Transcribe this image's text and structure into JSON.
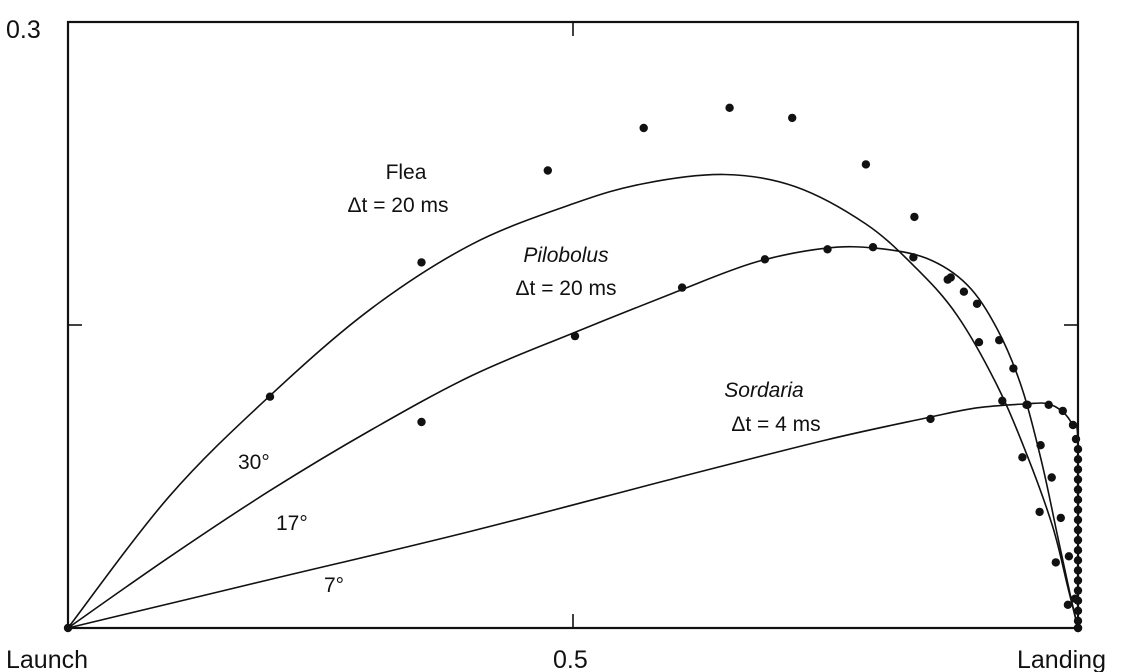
{
  "chart_data": {
    "type": "line",
    "title": "",
    "xlabel": "",
    "ylabel": "",
    "xlim": [
      0,
      1
    ],
    "ylim": [
      0,
      0.3
    ],
    "x_ticks": [
      {
        "value": 0,
        "label": "Launch"
      },
      {
        "value": 0.5,
        "label": "0.5"
      },
      {
        "value": 1,
        "label": "Landing"
      }
    ],
    "y_ticks": [
      {
        "value": 0.3,
        "label": "0.3"
      },
      {
        "value": 0.15,
        "label": ""
      }
    ],
    "grid": false,
    "series": [
      {
        "name": "Flea",
        "annotation": [
          "Flea",
          "Δt = 20 ms"
        ],
        "launch_angle": "30°",
        "curve": [
          [
            0,
            0
          ],
          [
            0.1,
            0.065
          ],
          [
            0.2,
            0.115
          ],
          [
            0.3,
            0.158
          ],
          [
            0.4,
            0.19
          ],
          [
            0.5,
            0.21
          ],
          [
            0.57,
            0.22
          ],
          [
            0.65,
            0.2245
          ],
          [
            0.72,
            0.2185
          ],
          [
            0.79,
            0.2
          ],
          [
            0.84,
            0.178
          ],
          [
            0.88,
            0.155
          ],
          [
            0.92,
            0.12
          ],
          [
            0.95,
            0.085
          ],
          [
            0.975,
            0.05
          ],
          [
            0.99,
            0.02
          ],
          [
            1,
            0
          ]
        ],
        "points": [
          [
            0.2,
            0.1145
          ],
          [
            0.35,
            0.181
          ],
          [
            0.475,
            0.2265
          ],
          [
            0.57,
            0.2475
          ],
          [
            0.655,
            0.2575
          ],
          [
            0.717,
            0.2525
          ],
          [
            0.79,
            0.2295
          ],
          [
            0.838,
            0.2035
          ],
          [
            0.874,
            0.1735
          ],
          [
            0.902,
            0.1415
          ],
          [
            0.925,
            0.1125
          ],
          [
            0.945,
            0.0845
          ],
          [
            0.962,
            0.0575
          ],
          [
            0.978,
            0.0325
          ],
          [
            0.99,
            0.0115
          ],
          [
            1,
            0
          ]
        ]
      },
      {
        "name": "Pilobolus",
        "annotation": [
          "Pilobolus",
          "Δt = 20 ms"
        ],
        "launch_angle": "17°",
        "curve": [
          [
            0,
            0
          ],
          [
            0.1,
            0.035
          ],
          [
            0.2,
            0.068
          ],
          [
            0.3,
            0.098
          ],
          [
            0.4,
            0.125
          ],
          [
            0.5,
            0.146
          ],
          [
            0.6,
            0.166
          ],
          [
            0.68,
            0.181
          ],
          [
            0.75,
            0.188
          ],
          [
            0.8,
            0.188
          ],
          [
            0.85,
            0.183
          ],
          [
            0.89,
            0.17
          ],
          [
            0.92,
            0.148
          ],
          [
            0.945,
            0.118
          ],
          [
            0.965,
            0.08
          ],
          [
            0.98,
            0.045
          ],
          [
            0.993,
            0.015
          ],
          [
            1,
            0
          ]
        ],
        "points": [
          [
            0.35,
            0.102
          ],
          [
            0.502,
            0.1445
          ],
          [
            0.608,
            0.1685
          ],
          [
            0.69,
            0.1825
          ],
          [
            0.752,
            0.1875
          ],
          [
            0.797,
            0.1885
          ],
          [
            0.837,
            0.1835
          ],
          [
            0.871,
            0.1725
          ],
          [
            0.887,
            0.1665
          ],
          [
            0.9,
            0.1605
          ],
          [
            0.922,
            0.1425
          ],
          [
            0.936,
            0.1285
          ],
          [
            0.95,
            0.1105
          ],
          [
            0.963,
            0.0905
          ],
          [
            0.974,
            0.0745
          ],
          [
            0.983,
            0.0545
          ],
          [
            0.991,
            0.0355
          ],
          [
            0.997,
            0.0145
          ],
          [
            1,
            0
          ]
        ]
      },
      {
        "name": "Sordaria",
        "annotation": [
          "Sordaria",
          "Δt = 4 ms"
        ],
        "launch_angle": "7°",
        "curve": [
          [
            0,
            0
          ],
          [
            0.2,
            0.024
          ],
          [
            0.4,
            0.048
          ],
          [
            0.6,
            0.074
          ],
          [
            0.75,
            0.093
          ],
          [
            0.85,
            0.104
          ],
          [
            0.9,
            0.109
          ],
          [
            0.95,
            0.111
          ],
          [
            0.97,
            0.111
          ],
          [
            0.985,
            0.107
          ],
          [
            0.995,
            0.1
          ],
          [
            1,
            0.09
          ],
          [
            1,
            0
          ]
        ],
        "points": [
          [
            0.854,
            0.1035
          ],
          [
            0.949,
            0.1105
          ],
          [
            0.971,
            0.1105
          ],
          [
            0.985,
            0.1075
          ],
          [
            0.995,
            0.1005
          ],
          [
            0.998,
            0.0935
          ],
          [
            1,
            0.0885
          ],
          [
            1,
            0.0835
          ],
          [
            1,
            0.0785
          ],
          [
            1,
            0.0735
          ],
          [
            1,
            0.0685
          ],
          [
            1,
            0.0635
          ],
          [
            1,
            0.0585
          ],
          [
            1,
            0.0535
          ],
          [
            1,
            0.0485
          ],
          [
            1,
            0.0435
          ],
          [
            1,
            0.0385
          ],
          [
            1,
            0.0335
          ],
          [
            1,
            0.0285
          ],
          [
            1,
            0.0235
          ],
          [
            1,
            0.0185
          ],
          [
            1,
            0.0135
          ],
          [
            1,
            0.0085
          ],
          [
            1,
            0.0035
          ]
        ]
      }
    ]
  }
}
